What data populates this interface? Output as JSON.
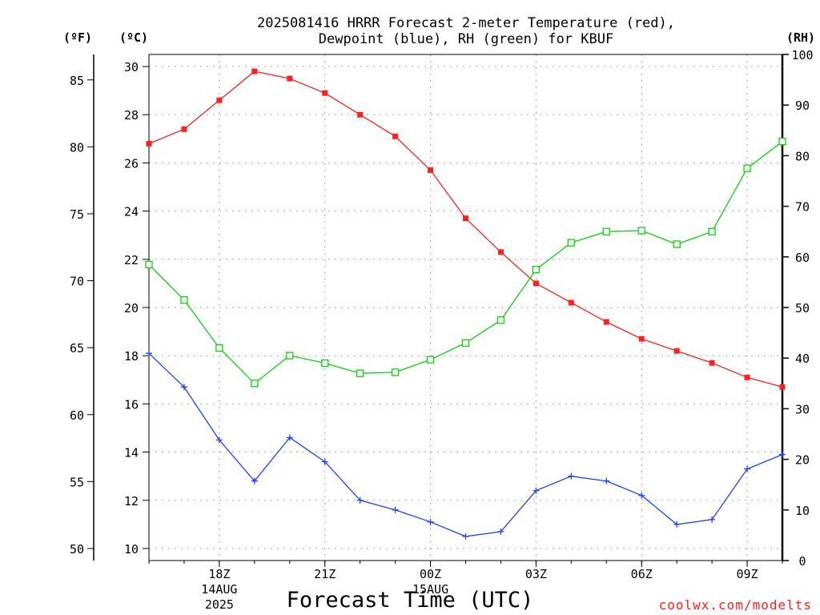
{
  "chart_data": {
    "type": "line",
    "title_lines": [
      "2025081416 HRRR Forecast 2-meter Temperature (red),",
      "Dewpoint (blue), RH (green) for KBUF"
    ],
    "xlabel": "Forecast Time (UTC)",
    "credit": "coolwx.com/modelts",
    "units": {
      "fahrenheit": "(ºF)",
      "celsius": "(ºC)",
      "rh": "(RH)"
    },
    "x": [
      "16Z",
      "17Z",
      "18Z",
      "19Z",
      "20Z",
      "21Z",
      "22Z",
      "23Z",
      "00Z",
      "01Z",
      "02Z",
      "03Z",
      "04Z",
      "05Z",
      "06Z",
      "07Z",
      "08Z",
      "09Z",
      "10Z"
    ],
    "x_ticks": [
      {
        "index": 2,
        "lines": [
          "18Z",
          "14AUG",
          "2025"
        ]
      },
      {
        "index": 5,
        "lines": [
          "21Z"
        ]
      },
      {
        "index": 8,
        "lines": [
          "00Z",
          "15AUG"
        ]
      },
      {
        "index": 11,
        "lines": [
          "03Z"
        ]
      },
      {
        "index": 14,
        "lines": [
          "06Z"
        ]
      },
      {
        "index": 17,
        "lines": [
          "09Z"
        ]
      }
    ],
    "celsius_axis": {
      "range": [
        9.5,
        30.5
      ],
      "ticks": [
        10,
        12,
        14,
        16,
        18,
        20,
        22,
        24,
        26,
        28,
        30
      ]
    },
    "fahrenheit_axis": {
      "range": [
        49.1,
        86.9
      ],
      "ticks": [
        50,
        55,
        60,
        65,
        70,
        75,
        80,
        85
      ]
    },
    "rh_axis": {
      "range": [
        0,
        100
      ],
      "ticks": [
        0,
        10,
        20,
        30,
        40,
        50,
        60,
        70,
        80,
        90,
        100
      ]
    },
    "grid": true,
    "series": [
      {
        "name": "Temperature",
        "axis": "celsius",
        "color": "#ff2020",
        "marker": "filled-square",
        "values": [
          26.8,
          27.4,
          28.6,
          29.8,
          29.5,
          28.9,
          28.0,
          27.1,
          25.7,
          23.7,
          22.3,
          21.0,
          20.2,
          19.4,
          18.7,
          18.2,
          17.7,
          17.1,
          16.7
        ]
      },
      {
        "name": "Dewpoint",
        "axis": "celsius",
        "color": "#2040ff",
        "marker": "plus",
        "values": [
          18.1,
          16.7,
          14.5,
          12.8,
          14.6,
          13.6,
          12.0,
          11.6,
          11.1,
          10.5,
          10.7,
          12.4,
          13.0,
          12.8,
          12.2,
          11.0,
          11.2,
          13.3,
          13.9
        ]
      },
      {
        "name": "RH",
        "axis": "rh",
        "color": "#10d010",
        "marker": "open-square",
        "values": [
          58.5,
          51.5,
          42.0,
          35.0,
          40.5,
          39.0,
          37.0,
          37.2,
          39.7,
          43.0,
          47.5,
          57.5,
          62.8,
          65.0,
          65.2,
          62.5,
          65.0,
          77.5,
          82.8
        ]
      }
    ]
  }
}
